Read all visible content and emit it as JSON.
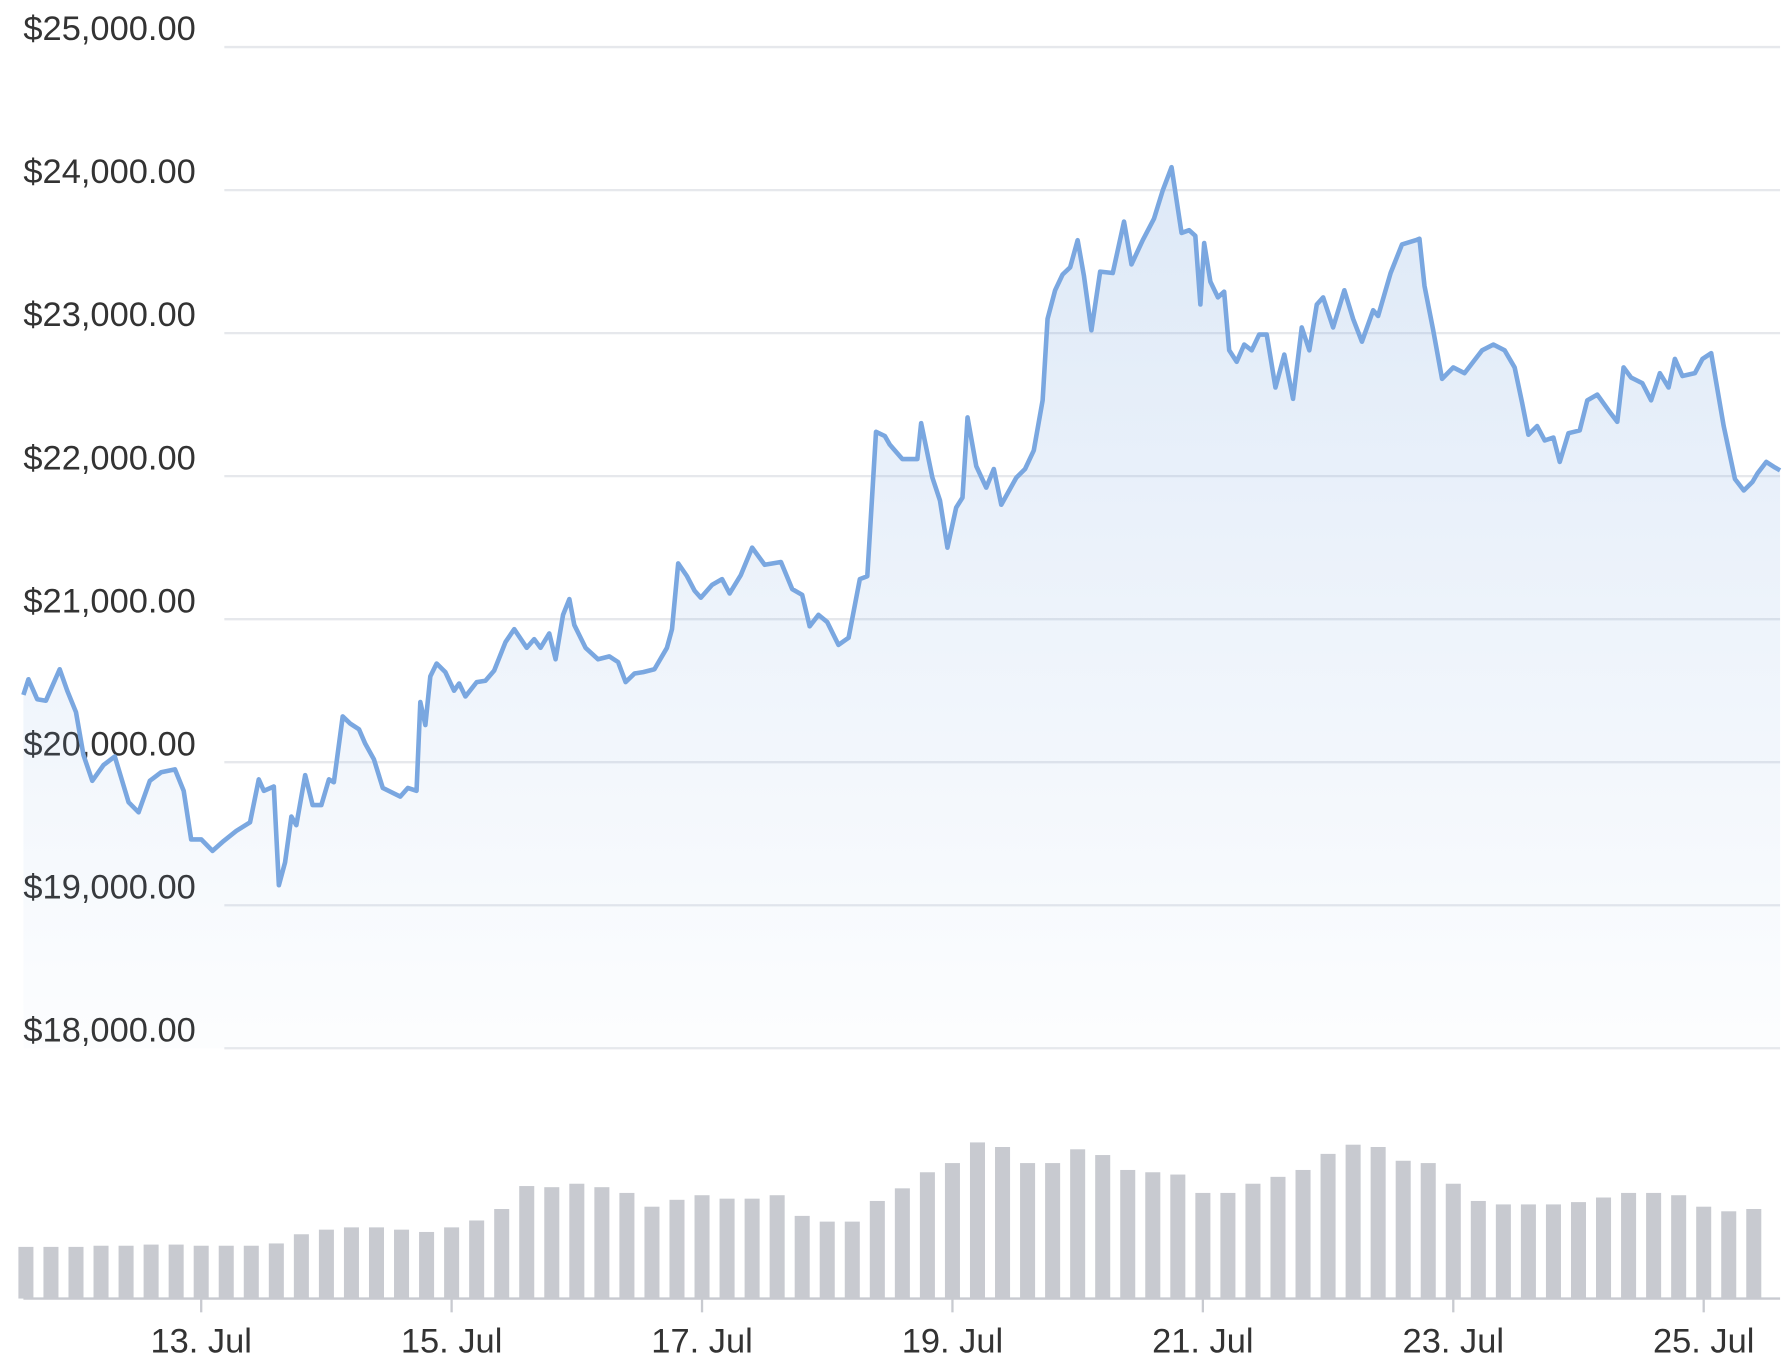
{
  "chart_data": [
    {
      "type": "line",
      "x": [
        11.58,
        11.62,
        11.69,
        11.76,
        11.87,
        11.93,
        12.0,
        12.06,
        12.13,
        12.22,
        12.31,
        12.42,
        12.5,
        12.59,
        12.68,
        12.79,
        12.86,
        12.92,
        13.0,
        13.09,
        13.18,
        13.28,
        13.39,
        13.46,
        13.5,
        13.58,
        13.62,
        13.67,
        13.72,
        13.76,
        13.83,
        13.89,
        13.96,
        14.02,
        14.06,
        14.13,
        14.19,
        14.26,
        14.31,
        14.38,
        14.45,
        14.59,
        14.65,
        14.72,
        14.75,
        14.79,
        14.83,
        14.88,
        14.95,
        15.02,
        15.06,
        15.11,
        15.2,
        15.27,
        15.34,
        15.43,
        15.5,
        15.6,
        15.66,
        15.71,
        15.78,
        15.83,
        15.89,
        15.94,
        15.98,
        16.07,
        16.17,
        16.26,
        16.33,
        16.39,
        16.46,
        16.53,
        16.62,
        16.72,
        16.76,
        16.81,
        16.88,
        16.94,
        16.99,
        17.08,
        17.16,
        17.22,
        17.31,
        17.4,
        17.5,
        17.63,
        17.72,
        17.8,
        17.86,
        17.93,
        18.0,
        18.09,
        18.17,
        18.26,
        18.32,
        18.39,
        18.46,
        18.5,
        18.6,
        18.72,
        18.75,
        18.84,
        18.9,
        18.96,
        19.03,
        19.08,
        19.12,
        19.19,
        19.27,
        19.33,
        19.39,
        19.51,
        19.58,
        19.65,
        19.72,
        19.76,
        19.82,
        19.88,
        19.94,
        20.0,
        20.05,
        20.11,
        20.18,
        20.28,
        20.37,
        20.43,
        20.52,
        20.61,
        20.68,
        20.75,
        20.83,
        20.89,
        20.94,
        20.98,
        21.01,
        21.06,
        21.12,
        21.17,
        21.21,
        21.27,
        21.33,
        21.39,
        21.45,
        21.51,
        21.58,
        21.65,
        21.72,
        21.79,
        21.85,
        21.91,
        21.96,
        22.04,
        22.13,
        22.2,
        22.27,
        22.36,
        22.4,
        22.5,
        22.59,
        22.7,
        22.73,
        22.77,
        22.84,
        22.91,
        23.0,
        23.09,
        23.16,
        23.23,
        23.32,
        23.41,
        23.49,
        23.55,
        23.6,
        23.67,
        23.73,
        23.8,
        23.85,
        23.92,
        24.01,
        24.07,
        24.15,
        24.24,
        24.31,
        24.36,
        24.42,
        24.51,
        24.58,
        24.65,
        24.72,
        24.77,
        24.83,
        24.93,
        24.99,
        25.06,
        25.16,
        25.25,
        25.32,
        25.39,
        25.43,
        25.5,
        25.57,
        25.61
      ],
      "series": [
        {
          "color": "#7aa7e0",
          "values": [
            20470,
            20580,
            20440,
            20430,
            20650,
            20500,
            20350,
            20050,
            19870,
            19980,
            20040,
            19720,
            19650,
            19870,
            19930,
            19950,
            19800,
            19460,
            19460,
            19380,
            19450,
            19520,
            19580,
            19880,
            19800,
            19830,
            19140,
            19300,
            19620,
            19560,
            19910,
            19700,
            19700,
            19880,
            19860,
            20320,
            20270,
            20230,
            20130,
            20020,
            19820,
            19760,
            19820,
            19800,
            20420,
            20260,
            20600,
            20690,
            20630,
            20500,
            20550,
            20460,
            20560,
            20570,
            20640,
            20840,
            20930,
            20800,
            20860,
            20800,
            20900,
            20720,
            21030,
            21140,
            20960,
            20800,
            20720,
            20740,
            20700,
            20560,
            20620,
            20630,
            20650,
            20800,
            20930,
            21390,
            21300,
            21200,
            21150,
            21240,
            21280,
            21180,
            21310,
            21500,
            21380,
            21400,
            21210,
            21170,
            20950,
            21030,
            20980,
            20820,
            20870,
            21280,
            21300,
            22310,
            22280,
            22220,
            22120,
            22120,
            22370,
            21990,
            21830,
            21500,
            21780,
            21850,
            22410,
            22070,
            21920,
            22050,
            21800,
            21990,
            22050,
            22180,
            22530,
            23100,
            23300,
            23410,
            23460,
            23650,
            23400,
            23020,
            23430,
            23420,
            23780,
            23480,
            23650,
            23800,
            24000,
            24160,
            23700,
            23720,
            23680,
            23200,
            23630,
            23360,
            23250,
            23290,
            22880,
            22800,
            22920,
            22880,
            22990,
            22990,
            22620,
            22850,
            22540,
            23040,
            22880,
            23200,
            23250,
            23040,
            23300,
            23100,
            22940,
            23160,
            23120,
            23420,
            23620,
            23650,
            23660,
            23330,
            23020,
            22680,
            22760,
            22720,
            22800,
            22880,
            22920,
            22880,
            22760,
            22510,
            22290,
            22350,
            22250,
            22270,
            22100,
            22300,
            22320,
            22530,
            22570,
            22460,
            22380,
            22760,
            22690,
            22650,
            22530,
            22720,
            22620,
            22820,
            22700,
            22720,
            22820,
            22860,
            22350,
            21980,
            21900,
            21960,
            22020,
            22100,
            22060,
            22040
          ]
        }
      ],
      "xlim": [
        11.58,
        25.61
      ],
      "xticks": [
        {
          "value": 13,
          "label": "13. Jul"
        },
        {
          "value": 15,
          "label": "15. Jul"
        },
        {
          "value": 17,
          "label": "17. Jul"
        },
        {
          "value": 19,
          "label": "19. Jul"
        },
        {
          "value": 21,
          "label": "21. Jul"
        },
        {
          "value": 23,
          "label": "23. Jul"
        },
        {
          "value": 25,
          "label": "25. Jul"
        }
      ],
      "ylim": [
        18000,
        25000
      ],
      "yticks": [
        {
          "value": 18000,
          "label": "$18,000.00"
        },
        {
          "value": 19000,
          "label": "$19,000.00"
        },
        {
          "value": 20000,
          "label": "$20,000.00"
        },
        {
          "value": 21000,
          "label": "$21,000.00"
        },
        {
          "value": 22000,
          "label": "$22,000.00"
        },
        {
          "value": 23000,
          "label": "$23,000.00"
        },
        {
          "value": 24000,
          "label": "$24,000.00"
        },
        {
          "value": 25000,
          "label": "$25,000.00"
        }
      ],
      "grid": true
    },
    {
      "type": "bar",
      "x": [
        11.6,
        11.8,
        12.0,
        12.2,
        12.4,
        12.6,
        12.8,
        13.0,
        13.2,
        13.4,
        13.6,
        13.8,
        14.0,
        14.2,
        14.4,
        14.6,
        14.8,
        15.0,
        15.2,
        15.4,
        15.6,
        15.8,
        16.0,
        16.2,
        16.4,
        16.6,
        16.8,
        17.0,
        17.2,
        17.4,
        17.6,
        17.8,
        18.0,
        18.2,
        18.4,
        18.6,
        18.8,
        19.0,
        19.2,
        19.4,
        19.6,
        19.8,
        20.0,
        20.2,
        20.4,
        20.6,
        20.8,
        21.0,
        21.2,
        21.4,
        21.6,
        21.8,
        22.0,
        22.2,
        22.4,
        22.6,
        22.8,
        23.0,
        23.2,
        23.4,
        23.6,
        23.8,
        24.0,
        24.2,
        24.4,
        24.6,
        24.8,
        25.0,
        25.2,
        25.4
      ],
      "values": [
        45,
        45,
        45,
        46,
        46,
        47,
        47,
        46,
        46,
        46,
        48,
        56,
        60,
        62,
        62,
        60,
        58,
        62,
        68,
        78,
        98,
        97,
        100,
        97,
        92,
        80,
        86,
        90,
        87,
        87,
        90,
        72,
        67,
        67,
        85,
        96,
        110,
        118,
        136,
        132,
        118,
        118,
        130,
        125,
        112,
        110,
        108,
        92,
        92,
        100,
        106,
        112,
        126,
        134,
        132,
        120,
        118,
        100,
        85,
        82,
        82,
        82,
        84,
        88,
        92,
        92,
        90,
        80,
        76,
        78
      ],
      "color": "#c8cad0",
      "ylim": [
        0,
        150
      ]
    }
  ]
}
